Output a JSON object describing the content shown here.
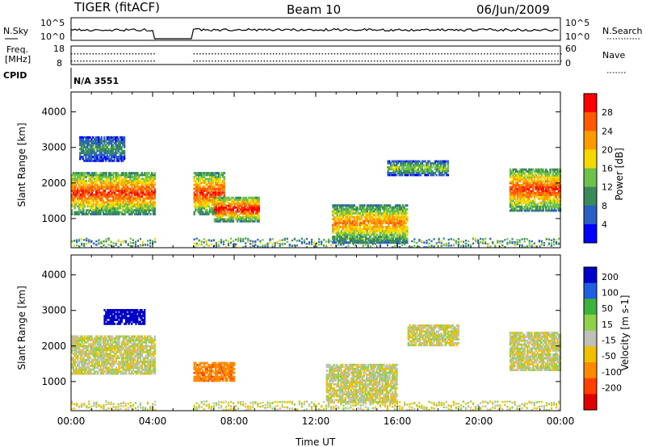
{
  "header": {
    "title": "TIGER (fitACF)",
    "beam": "Beam 10",
    "date": "06/Jun/2009"
  },
  "status_panels": {
    "nsky": {
      "label": "N.Sky",
      "left_ticks": [
        "10^5",
        "10^0"
      ],
      "right_ticks": [
        "10^5",
        "10^0"
      ],
      "right_label": "N.Search"
    },
    "freq": {
      "label_line1": "Freq.",
      "label_line2": "[MHz]",
      "left_ticks": [
        "18",
        "8"
      ],
      "right_ticks": [
        "60",
        "0"
      ],
      "right_label": "Nave"
    },
    "cpid": {
      "label": "CPID",
      "value": "N/A 3551"
    }
  },
  "chart_data": [
    {
      "type": "heatmap",
      "panel": "power",
      "xlabel": "Time UT",
      "ylabel": "Slant Range [km]",
      "x_ticks": [
        "00:00",
        "04:00",
        "08:00",
        "12:00",
        "16:00",
        "20:00",
        "00:00"
      ],
      "x_range_hours": [
        0,
        24
      ],
      "y_ticks": [
        1000,
        2000,
        3000,
        4000
      ],
      "y_range": [
        180,
        4560
      ],
      "colorbar": {
        "label": "Power [dB]",
        "ticks": [
          "4",
          "8",
          "12",
          "16",
          "20",
          "24",
          "28"
        ],
        "range": [
          0,
          32
        ],
        "colors": [
          "#0000ff",
          "#2a5fc4",
          "#3a8a5a",
          "#6cc24a",
          "#f5d800",
          "#ff9a00",
          "#ff5a00",
          "#ff0000"
        ]
      },
      "data_gaps_hours": [
        [
          4.1,
          5.9
        ]
      ],
      "echo_regions": [
        {
          "t": [
            0.0,
            4.1
          ],
          "r": [
            1100,
            2300
          ],
          "level": 26
        },
        {
          "t": [
            0.4,
            2.6
          ],
          "r": [
            2600,
            3300
          ],
          "level": 10
        },
        {
          "t": [
            6.0,
            7.5
          ],
          "r": [
            1100,
            2300
          ],
          "level": 26
        },
        {
          "t": [
            7.0,
            9.2
          ],
          "r": [
            900,
            1600
          ],
          "level": 28
        },
        {
          "t": [
            12.8,
            16.5
          ],
          "r": [
            300,
            1400
          ],
          "level": 22
        },
        {
          "t": [
            15.5,
            18.5
          ],
          "r": [
            2200,
            2600
          ],
          "level": 14
        },
        {
          "t": [
            21.5,
            24.0
          ],
          "r": [
            1200,
            2400
          ],
          "level": 26
        }
      ]
    },
    {
      "type": "heatmap",
      "panel": "velocity",
      "xlabel": "Time UT",
      "ylabel": "Slant Range [km]",
      "x_ticks": [
        "00:00",
        "04:00",
        "08:00",
        "12:00",
        "16:00",
        "20:00",
        "00:00"
      ],
      "x_range_hours": [
        0,
        24
      ],
      "y_ticks": [
        1000,
        2000,
        3000,
        4000
      ],
      "y_range": [
        180,
        4560
      ],
      "colorbar": {
        "label": "Velocity [m s-1]",
        "ticks": [
          "200",
          "100",
          "50",
          "15",
          "-15",
          "-50",
          "-100",
          "-200"
        ],
        "colors": [
          "#0000c8",
          "#2060e0",
          "#3cb43c",
          "#8fd24a",
          "#c0c0b8",
          "#f0c000",
          "#ff8a00",
          "#ff4000",
          "#e00000"
        ]
      },
      "data_gaps_hours": [
        [
          4.1,
          5.9
        ]
      ],
      "echo_regions": [
        {
          "t": [
            0.0,
            4.1
          ],
          "r": [
            1200,
            2300
          ],
          "velocity": 0
        },
        {
          "t": [
            1.6,
            3.6
          ],
          "r": [
            2600,
            3000
          ],
          "velocity": 200
        },
        {
          "t": [
            6.0,
            8.0
          ],
          "r": [
            1000,
            1500
          ],
          "velocity": -60
        },
        {
          "t": [
            12.5,
            16.0
          ],
          "r": [
            400,
            1500
          ],
          "velocity": 0
        },
        {
          "t": [
            16.5,
            19.0
          ],
          "r": [
            2000,
            2600
          ],
          "velocity": 0
        },
        {
          "t": [
            21.5,
            24.0
          ],
          "r": [
            1300,
            2400
          ],
          "velocity": 0
        }
      ]
    }
  ]
}
